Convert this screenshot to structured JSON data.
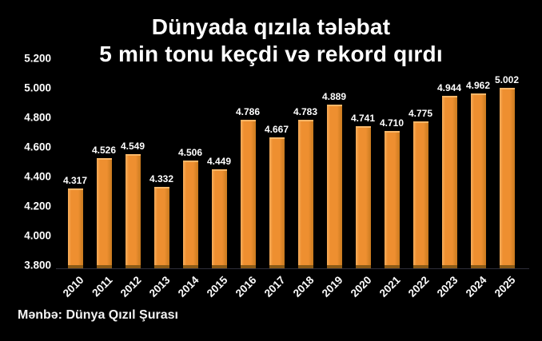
{
  "title": {
    "line1": "Dünyada qızıla tələbat",
    "line2": "5 min tonu keçdi və rekord qırdı"
  },
  "source": "Mənbə: Dünya Qızıl Şurası",
  "colors": {
    "background": "#000000",
    "text": "#ffffff",
    "bar_main": "#ee8f30",
    "bar_highlight": "#f8ae5c",
    "bar_cap": "#f9b768",
    "bar_shadow": "#c97a1f",
    "bar_bottom_edge": "#8a5a16"
  },
  "chart_data": {
    "type": "bar",
    "title": "Dünyada qızıla tələbat 5 min tonu keçdi və rekord qırdı",
    "categories": [
      "2010",
      "2011",
      "2012",
      "2013",
      "2014",
      "2015",
      "2016",
      "2017",
      "2018",
      "2019",
      "2020",
      "2021",
      "2022",
      "2023",
      "2024",
      "2025"
    ],
    "values": [
      4317,
      4526,
      4549,
      4332,
      4506,
      4449,
      4786,
      4667,
      4783,
      4889,
      4741,
      4710,
      4775,
      4944,
      4962,
      5002
    ],
    "value_labels": [
      "4.317",
      "4.526",
      "4.549",
      "4.332",
      "4.506",
      "4.449",
      "4.786",
      "4.667",
      "4.783",
      "4.889",
      "4.741",
      "4.710",
      "4.775",
      "4.944",
      "4.962",
      "5.002"
    ],
    "xlabel": "",
    "ylabel": "",
    "ylim": [
      3800,
      5200
    ],
    "ytick_step": 200,
    "ytick_labels": [
      "5.200",
      "5.000",
      "4.800",
      "4.600",
      "4.400",
      "4.200",
      "4.000",
      "3.800"
    ],
    "grid": false,
    "legend": false,
    "bar_color": "#ee8f30",
    "background": "#000000"
  }
}
